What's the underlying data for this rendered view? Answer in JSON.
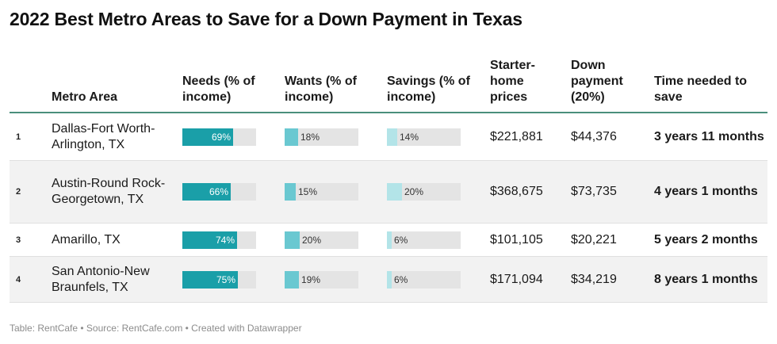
{
  "title": "2022 Best Metro Areas to Save for a Down Payment in Texas",
  "columns": {
    "metro": "Metro Area",
    "needs": "Needs (% of income)",
    "wants": "Wants (% of income)",
    "savings": "Savings (% of income)",
    "starter": "Starter-home prices",
    "down": "Down payment (20%)",
    "time": "Time needed to save"
  },
  "colors": {
    "needs": "#1a9fa8",
    "wants": "#6ac8d1",
    "savings": "#b3e4e8",
    "header_rule": "#4a8f7c"
  },
  "chart_data": {
    "type": "table",
    "title": "2022 Best Metro Areas to Save for a Down Payment in Texas",
    "rows": [
      {
        "rank": "1",
        "metro": "Dallas-Fort Worth-Arlington, TX",
        "needs": 69,
        "needs_label": "69%",
        "wants": 18,
        "wants_label": "18%",
        "savings": 14,
        "savings_label": "14%",
        "starter": "$221,881",
        "down": "$44,376",
        "time": "3 years 11 months"
      },
      {
        "rank": "2",
        "metro": "Austin-Round Rock-Georgetown, TX",
        "needs": 66,
        "needs_label": "66%",
        "wants": 15,
        "wants_label": "15%",
        "savings": 20,
        "savings_label": "20%",
        "starter": "$368,675",
        "down": "$73,735",
        "time": "4 years 1 months"
      },
      {
        "rank": "3",
        "metro": "Amarillo, TX",
        "needs": 74,
        "needs_label": "74%",
        "wants": 20,
        "wants_label": "20%",
        "savings": 6,
        "savings_label": "6%",
        "starter": "$101,105",
        "down": "$20,221",
        "time": "5 years 2 months"
      },
      {
        "rank": "4",
        "metro": "San Antonio-New Braunfels, TX",
        "needs": 75,
        "needs_label": "75%",
        "wants": 19,
        "wants_label": "19%",
        "savings": 6,
        "savings_label": "6%",
        "starter": "$171,094",
        "down": "$34,219",
        "time": "8 years 1 months"
      }
    ]
  },
  "footer": "Table: RentCafe • Source: RentCafe.com • Created with Datawrapper"
}
